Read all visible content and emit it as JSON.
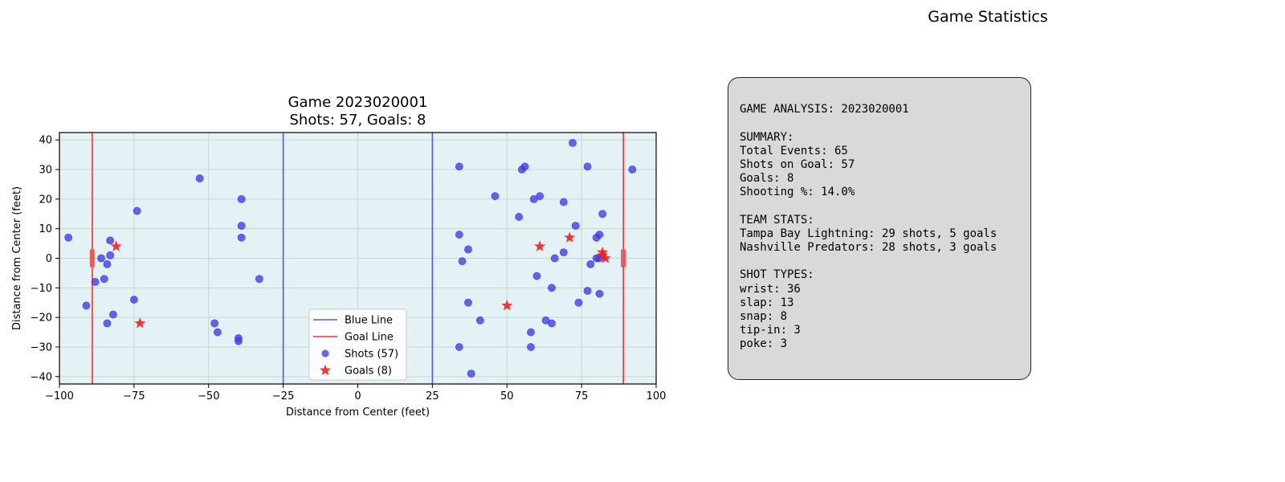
{
  "figure_title": "Game Statistics",
  "chart_data": {
    "type": "scatter",
    "title": "Game 2023020001",
    "subtitle": "Shots: 57, Goals: 8",
    "xlabel": "Distance from Center (feet)",
    "ylabel": "Distance from Center (feet)",
    "xlim": [
      -100,
      100
    ],
    "ylim": [
      -42.5,
      42.5
    ],
    "xticks": [
      -100,
      -75,
      -50,
      -25,
      0,
      25,
      50,
      75,
      100
    ],
    "yticks": [
      -40,
      -30,
      -20,
      -10,
      0,
      10,
      20,
      30,
      40
    ],
    "grid": true,
    "legend_position": "lower-center",
    "rink_color": "#e4f2f6",
    "lines": [
      {
        "name": "Blue Line",
        "color": "#5757e0",
        "x": [
          -25,
          25
        ]
      },
      {
        "name": "Goal Line",
        "color": "#f03232",
        "x": [
          -89,
          89
        ]
      }
    ],
    "nets": {
      "x": [
        -89,
        89
      ],
      "y_half_width": 3,
      "color": "#f25858"
    },
    "series": [
      {
        "name": "Shots (57)",
        "marker": "circle",
        "color": "#3a3af2",
        "points": [
          [
            -97,
            7
          ],
          [
            -91,
            -16
          ],
          [
            -88,
            -8
          ],
          [
            -86,
            0
          ],
          [
            -85,
            -7
          ],
          [
            -84,
            -2
          ],
          [
            -83,
            6
          ],
          [
            -83,
            1
          ],
          [
            -82,
            -19
          ],
          [
            -84,
            -22
          ],
          [
            -75,
            -14
          ],
          [
            -74,
            16
          ],
          [
            -53,
            27
          ],
          [
            -48,
            -22
          ],
          [
            -47,
            -25
          ],
          [
            -40,
            -27
          ],
          [
            -40,
            -28
          ],
          [
            -39,
            20
          ],
          [
            -39,
            11
          ],
          [
            -39,
            7
          ],
          [
            -33,
            -7
          ],
          [
            34,
            31
          ],
          [
            34,
            8
          ],
          [
            35,
            -1
          ],
          [
            37,
            3
          ],
          [
            37,
            -15
          ],
          [
            34,
            -30
          ],
          [
            38,
            -39
          ],
          [
            41,
            -21
          ],
          [
            46,
            21
          ],
          [
            54,
            14
          ],
          [
            55,
            30
          ],
          [
            56,
            31
          ],
          [
            58,
            -25
          ],
          [
            58,
            -30
          ],
          [
            59,
            20
          ],
          [
            61,
            21
          ],
          [
            60,
            -6
          ],
          [
            63,
            -21
          ],
          [
            65,
            -22
          ],
          [
            65,
            -10
          ],
          [
            66,
            0
          ],
          [
            69,
            19
          ],
          [
            69,
            2
          ],
          [
            72,
            39
          ],
          [
            73,
            11
          ],
          [
            74,
            -15
          ],
          [
            77,
            31
          ],
          [
            77,
            -11
          ],
          [
            78,
            -2
          ],
          [
            80,
            7
          ],
          [
            80,
            0
          ],
          [
            81,
            8
          ],
          [
            81,
            -12
          ],
          [
            82,
            15
          ],
          [
            81,
            0
          ],
          [
            92,
            30
          ]
        ]
      },
      {
        "name": "Goals (8)",
        "marker": "star",
        "color": "#f21a1a",
        "points": [
          [
            -81,
            4
          ],
          [
            -73,
            -22
          ],
          [
            50,
            -16
          ],
          [
            61,
            4
          ],
          [
            71,
            7
          ],
          [
            82,
            2
          ],
          [
            82,
            1
          ],
          [
            83,
            0
          ]
        ]
      }
    ]
  },
  "stats_lines": [
    "",
    "GAME ANALYSIS: 2023020001",
    "",
    "SUMMARY:",
    "Total Events: 65",
    "Shots on Goal: 57",
    "Goals: 8",
    "Shooting %: 14.0%",
    "",
    "TEAM STATS:",
    "Tampa Bay Lightning: 29 shots, 5 goals",
    "Nashville Predators: 28 shots, 3 goals",
    "",
    "SHOT TYPES:",
    "wrist: 36",
    "slap: 13",
    "snap: 8",
    "tip-in: 3",
    "poke: 3"
  ]
}
